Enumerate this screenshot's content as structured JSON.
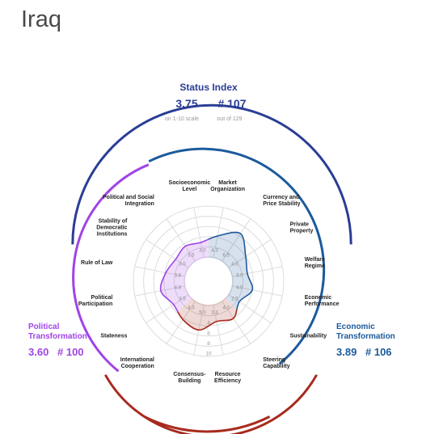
{
  "page": {
    "title": "Iraq"
  },
  "status_index": {
    "heading": "Status Index",
    "score": "3.75",
    "rank": "# 107",
    "score_note": "on 1-10 scale",
    "rank_note": "out of 129"
  },
  "political": {
    "title_line1": "Political",
    "title_line2": "Transformation",
    "score": "3.60",
    "rank": "# 100",
    "color": "#a044e6"
  },
  "economic": {
    "title_line1": "Economic",
    "title_line2": "Transformation",
    "score": "3.89",
    "rank": "# 106",
    "color": "#1c5a9c"
  },
  "governance": {
    "color": "#a82a1e"
  },
  "colors": {
    "status_blue": "#2a3d95"
  },
  "chart_data": {
    "type": "radar",
    "scale_max": 10,
    "ring_labels": [
      "4",
      "6",
      "8",
      "10"
    ],
    "categories": [
      {
        "label": [
          "Market",
          "Organization"
        ],
        "value": 4.3,
        "group": "economic"
      },
      {
        "label": [
          "Currency and",
          "Price Stability"
        ],
        "value": 6.5,
        "group": "economic"
      },
      {
        "label": [
          "Private",
          "Property"
        ],
        "value": 4.0,
        "group": "economic"
      },
      {
        "label": [
          "Welfare",
          "Regime"
        ],
        "value": 3.0,
        "group": "economic"
      },
      {
        "label": [
          "Economic",
          "Performance"
        ],
        "value": 4.0,
        "group": "economic"
      },
      {
        "label": [
          "Sustainability"
        ],
        "value": 2.5,
        "group": "economic"
      },
      {
        "label": [
          "Steering",
          "Capability"
        ],
        "value": 4.0,
        "group": "governance"
      },
      {
        "label": [
          "Resource",
          "Efficiency"
        ],
        "value": 3.3,
        "group": "governance"
      },
      {
        "label": [
          "Consensus-",
          "Building"
        ],
        "value": 5.0,
        "group": "governance"
      },
      {
        "label": [
          "International",
          "Cooperation"
        ],
        "value": 4.3,
        "group": "governance"
      },
      {
        "label": [
          "Stateness"
        ],
        "value": 3.5,
        "group": "political"
      },
      {
        "label": [
          "Political",
          "Participation"
        ],
        "value": 4.8,
        "group": "political"
      },
      {
        "label": [
          "Rule of Law"
        ],
        "value": 3.8,
        "group": "political"
      },
      {
        "label": [
          "Stability of",
          "Democratic",
          "Institutions"
        ],
        "value": 3.0,
        "group": "political"
      },
      {
        "label": [
          "Political and Social",
          "Integration"
        ],
        "value": 3.5,
        "group": "political"
      },
      {
        "label": [
          "Socioeconomic",
          "Level"
        ],
        "value": 3.0,
        "group": "political"
      }
    ]
  }
}
